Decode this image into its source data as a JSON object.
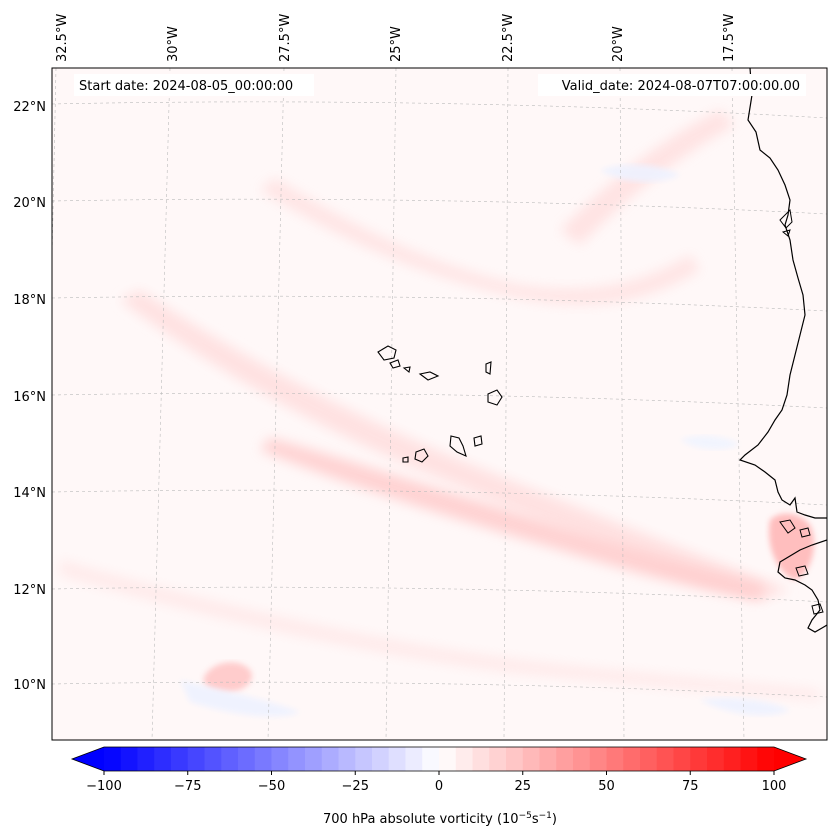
{
  "map": {
    "start_date": "Start date: 2024-08-05_00:00:00",
    "valid_date": "Valid_date: 2024-08-07T07:00:00.00",
    "lon_labels": [
      "32.5°W",
      "30°W",
      "27.5°W",
      "25°W",
      "22.5°W",
      "20°W",
      "17.5°W"
    ],
    "lat_labels": [
      "22°N",
      "20°N",
      "18°N",
      "16°N",
      "14°N",
      "12°N",
      "10°N"
    ],
    "extent": {
      "lon_min": -33.0,
      "lon_max": -16.0,
      "lat_min": 8.9,
      "lat_max": 22.7
    },
    "field": "700 hPa absolute vorticity",
    "colors": {
      "neg": "#0000ff",
      "zero": "#ffffff",
      "pos": "#ff0000",
      "coast": "#000000",
      "grid": "#bbbbbb"
    }
  },
  "colorbar": {
    "label_prefix": "700 hPa absolute vorticity (10",
    "label_exp1": "−5",
    "label_mid": "s",
    "label_exp2": "−1",
    "label_suffix": ")",
    "ticks": [
      "−100",
      "−75",
      "−50",
      "−25",
      "0",
      "25",
      "50",
      "75",
      "100"
    ],
    "min": -100,
    "max": 100,
    "levels": 41
  }
}
